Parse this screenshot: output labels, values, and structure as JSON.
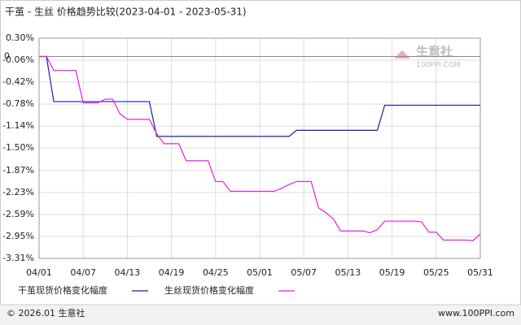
{
  "chart_data": {
    "type": "line",
    "title": "干茧 - 生丝 价格趋势比较(2023-04-01 - 2023-05-31)",
    "watermark": "生意社",
    "watermark_sub": "100PPI.COM",
    "zero_label": "0",
    "categories": [
      "04/01",
      null,
      null,
      null,
      null,
      null,
      "04/07",
      null,
      null,
      null,
      null,
      null,
      "04/13",
      null,
      null,
      null,
      null,
      null,
      "04/19",
      null,
      null,
      null,
      null,
      null,
      "04/25",
      null,
      null,
      null,
      null,
      null,
      "05/01",
      null,
      null,
      null,
      null,
      null,
      "05/07",
      null,
      null,
      null,
      null,
      null,
      "05/13",
      null,
      null,
      null,
      null,
      null,
      "05/19",
      null,
      null,
      null,
      null,
      null,
      "05/25",
      null,
      null,
      null,
      null,
      null,
      "05/31"
    ],
    "series": [
      {
        "name": "干茧现货价格变化幅度",
        "color": "#1c1cb4",
        "values": [
          0,
          0,
          -0.74,
          -0.74,
          -0.74,
          -0.74,
          -0.74,
          -0.74,
          -0.74,
          -0.74,
          -0.74,
          -0.74,
          -0.74,
          -0.74,
          -0.74,
          -0.74,
          -1.31,
          -1.31,
          -1.31,
          -1.31,
          -1.31,
          -1.31,
          -1.31,
          -1.31,
          -1.31,
          -1.31,
          -1.31,
          -1.31,
          -1.31,
          -1.31,
          -1.31,
          -1.31,
          -1.31,
          -1.31,
          -1.31,
          -1.21,
          -1.21,
          -1.21,
          -1.21,
          -1.21,
          -1.21,
          -1.21,
          -1.21,
          -1.21,
          -1.21,
          -1.21,
          -1.21,
          -0.8,
          -0.8,
          -0.8,
          -0.8,
          -0.8,
          -0.8,
          -0.8,
          -0.8,
          -0.8,
          -0.8,
          -0.8,
          -0.8,
          -0.8,
          -0.8
        ]
      },
      {
        "name": "生丝现货价格变化幅度",
        "color": "#e020e0",
        "values": [
          0,
          0,
          -0.23,
          -0.23,
          -0.23,
          -0.23,
          -0.76,
          -0.76,
          -0.76,
          -0.7,
          -0.7,
          -0.94,
          -1.03,
          -1.03,
          -1.03,
          -1.03,
          -1.27,
          -1.43,
          -1.43,
          -1.43,
          -1.71,
          -1.71,
          -1.71,
          -1.71,
          -2.05,
          -2.05,
          -2.21,
          -2.21,
          -2.21,
          -2.21,
          -2.21,
          -2.21,
          -2.21,
          -2.16,
          -2.1,
          -2.05,
          -2.05,
          -2.05,
          -2.48,
          -2.56,
          -2.66,
          -2.86,
          -2.86,
          -2.86,
          -2.86,
          -2.89,
          -2.84,
          -2.7,
          -2.7,
          -2.7,
          -2.7,
          -2.7,
          -2.71,
          -2.88,
          -2.88,
          -3.01,
          -3.01,
          -3.01,
          -3.01,
          -3.02,
          -2.91
        ]
      }
    ],
    "ylim": [
      -3.31,
      0.3
    ],
    "yticks": [
      {
        "value": 0.3,
        "label": "0.30%"
      },
      {
        "value": -0.06,
        "label": "-0.06%"
      },
      {
        "value": -0.42,
        "label": "-0.42%"
      },
      {
        "value": -0.78,
        "label": "-0.78%"
      },
      {
        "value": -1.14,
        "label": "-1.14%"
      },
      {
        "value": -1.5,
        "label": "-1.50%"
      },
      {
        "value": -1.87,
        "label": "-1.87%"
      },
      {
        "value": -2.23,
        "label": "-2.23%"
      },
      {
        "value": -2.59,
        "label": "-2.59%"
      },
      {
        "value": -2.95,
        "label": "-2.95%"
      },
      {
        "value": -3.31,
        "label": "-3.31%"
      }
    ],
    "grid": true,
    "footer_left": "© 2026.01 生意社",
    "footer_right": "www.100PPI.com"
  }
}
